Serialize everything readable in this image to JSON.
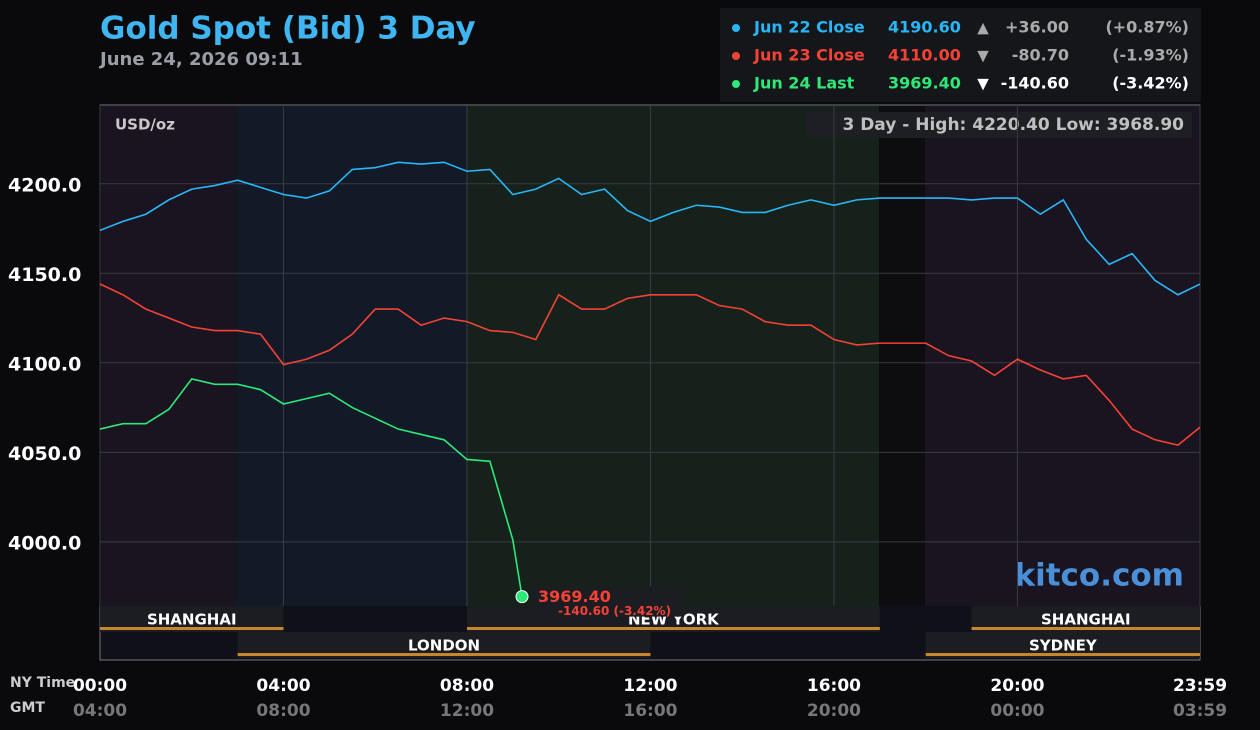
{
  "chart_data": {
    "type": "line",
    "title": "Gold Spot (Bid) 3 Day",
    "subtitle": "June 24, 2026 09:11",
    "y_label": "USD/oz",
    "range_note": "3 Day - High: 4220.40  Low: 3968.90",
    "watermark": "kitco.com",
    "x_label": "NY Time",
    "x2_label": "GMT",
    "xlim": [
      0,
      23.98
    ],
    "xticks": [
      {
        "value": 0,
        "label": "00:00"
      },
      {
        "value": 4,
        "label": "04:00"
      },
      {
        "value": 8,
        "label": "08:00"
      },
      {
        "value": 12,
        "label": "12:00"
      },
      {
        "value": 16,
        "label": "16:00"
      },
      {
        "value": 20,
        "label": "20:00"
      },
      {
        "value": 23.98,
        "label": "23:59"
      }
    ],
    "gmt_labels": [
      "04:00",
      "08:00",
      "12:00",
      "16:00",
      "20:00",
      "00:00",
      "03:59"
    ],
    "ylim": [
      3934,
      4244
    ],
    "yticks": [
      {
        "value": 4000,
        "label": "4000.0"
      },
      {
        "value": 4050,
        "label": "4050.0"
      },
      {
        "value": 4100,
        "label": "4100.0"
      },
      {
        "value": 4150,
        "label": "4150.0"
      },
      {
        "value": 4200,
        "label": "4200.0"
      }
    ],
    "grid": true,
    "series": [
      {
        "name": "Jun 22 Close",
        "color": "#29b6f6",
        "x": [
          0,
          0.5,
          1,
          1.5,
          2,
          2.5,
          3,
          3.5,
          4,
          4.5,
          5,
          5.5,
          6,
          6.5,
          7,
          7.5,
          8,
          8.5,
          9,
          9.5,
          10,
          10.5,
          11,
          11.5,
          12,
          12.5,
          13,
          13.5,
          14,
          14.5,
          15,
          15.5,
          16,
          16.5,
          17,
          17.5,
          18,
          18.5,
          19,
          19.5,
          20,
          20.5,
          21,
          21.5,
          22,
          22.5,
          23,
          23.5,
          23.98
        ],
        "values": [
          4174,
          4179,
          4183,
          4191,
          4197,
          4199,
          4202,
          4198,
          4194,
          4192,
          4196,
          4208,
          4209,
          4212,
          4211,
          4212,
          4207,
          4208,
          4194,
          4197,
          4203,
          4194,
          4197,
          4185,
          4179,
          4184,
          4188,
          4187,
          4184,
          4184,
          4188,
          4191,
          4188,
          4191,
          4192,
          4192,
          4192,
          4192,
          4191,
          4192,
          4192,
          4183,
          4191,
          4169,
          4155,
          4161,
          4146,
          4138,
          4144
        ]
      },
      {
        "name": "Jun 23 Close",
        "color": "#f44336",
        "x": [
          0,
          0.5,
          1,
          1.5,
          2,
          2.5,
          3,
          3.5,
          4,
          4.5,
          5,
          5.5,
          6,
          6.5,
          7,
          7.5,
          8,
          8.5,
          9,
          9.5,
          10,
          10.5,
          11,
          11.5,
          12,
          12.5,
          13,
          13.5,
          14,
          14.5,
          15,
          15.5,
          16,
          16.5,
          17,
          17.5,
          18,
          18.5,
          19,
          19.5,
          20,
          20.5,
          21,
          21.5,
          22,
          22.5,
          23,
          23.5,
          23.98
        ],
        "values": [
          4144,
          4138,
          4130,
          4125,
          4120,
          4118,
          4118,
          4116,
          4099,
          4102,
          4107,
          4116,
          4130,
          4130,
          4121,
          4125,
          4123,
          4118,
          4117,
          4113,
          4138,
          4130,
          4130,
          4136,
          4138,
          4138,
          4138,
          4132,
          4130,
          4123,
          4121,
          4121,
          4113,
          4110,
          4111,
          4111,
          4111,
          4104,
          4101,
          4093,
          4102,
          4096,
          4091,
          4093,
          4079,
          4063,
          4057,
          4054,
          4064
        ]
      },
      {
        "name": "Jun 24 Last",
        "color": "#2ee87a",
        "x": [
          0,
          0.5,
          1,
          1.5,
          2,
          2.5,
          3,
          3.5,
          4,
          4.5,
          5,
          5.5,
          6,
          6.5,
          7,
          7.5,
          8,
          8.5,
          9,
          9.2
        ],
        "values": [
          4063,
          4066,
          4066,
          4074,
          4091,
          4088,
          4088,
          4085,
          4077,
          4080,
          4083,
          4075,
          4069,
          4063,
          4060,
          4057,
          4046,
          4045,
          4001,
          3969.4
        ]
      }
    ],
    "legend_rows": [
      {
        "price": "4190.60",
        "arrow": "▲",
        "change": "+36.00",
        "pct": "(+0.87%)"
      },
      {
        "price": "4110.00",
        "arrow": "▼",
        "change": "-80.70",
        "pct": "(-1.93%)"
      },
      {
        "price": "3969.40",
        "arrow": "▼",
        "change": "-140.60",
        "pct": "(-3.42%)"
      }
    ],
    "last_label": {
      "price": "3969.40",
      "change": "-140.60 (-3.42%)"
    },
    "sessions": [
      {
        "label": "SHANGHAI",
        "start": 0,
        "end": 4,
        "row": 0
      },
      {
        "label": "NEW YORK",
        "start": 8,
        "end": 17,
        "row": 0
      },
      {
        "label": "SHANGHAI",
        "start": 19,
        "end": 23.98,
        "row": 0
      },
      {
        "label": "LONDON",
        "start": 3,
        "end": 12,
        "row": 1
      },
      {
        "label": "SYDNEY",
        "start": 18,
        "end": 23.98,
        "row": 1
      }
    ]
  }
}
